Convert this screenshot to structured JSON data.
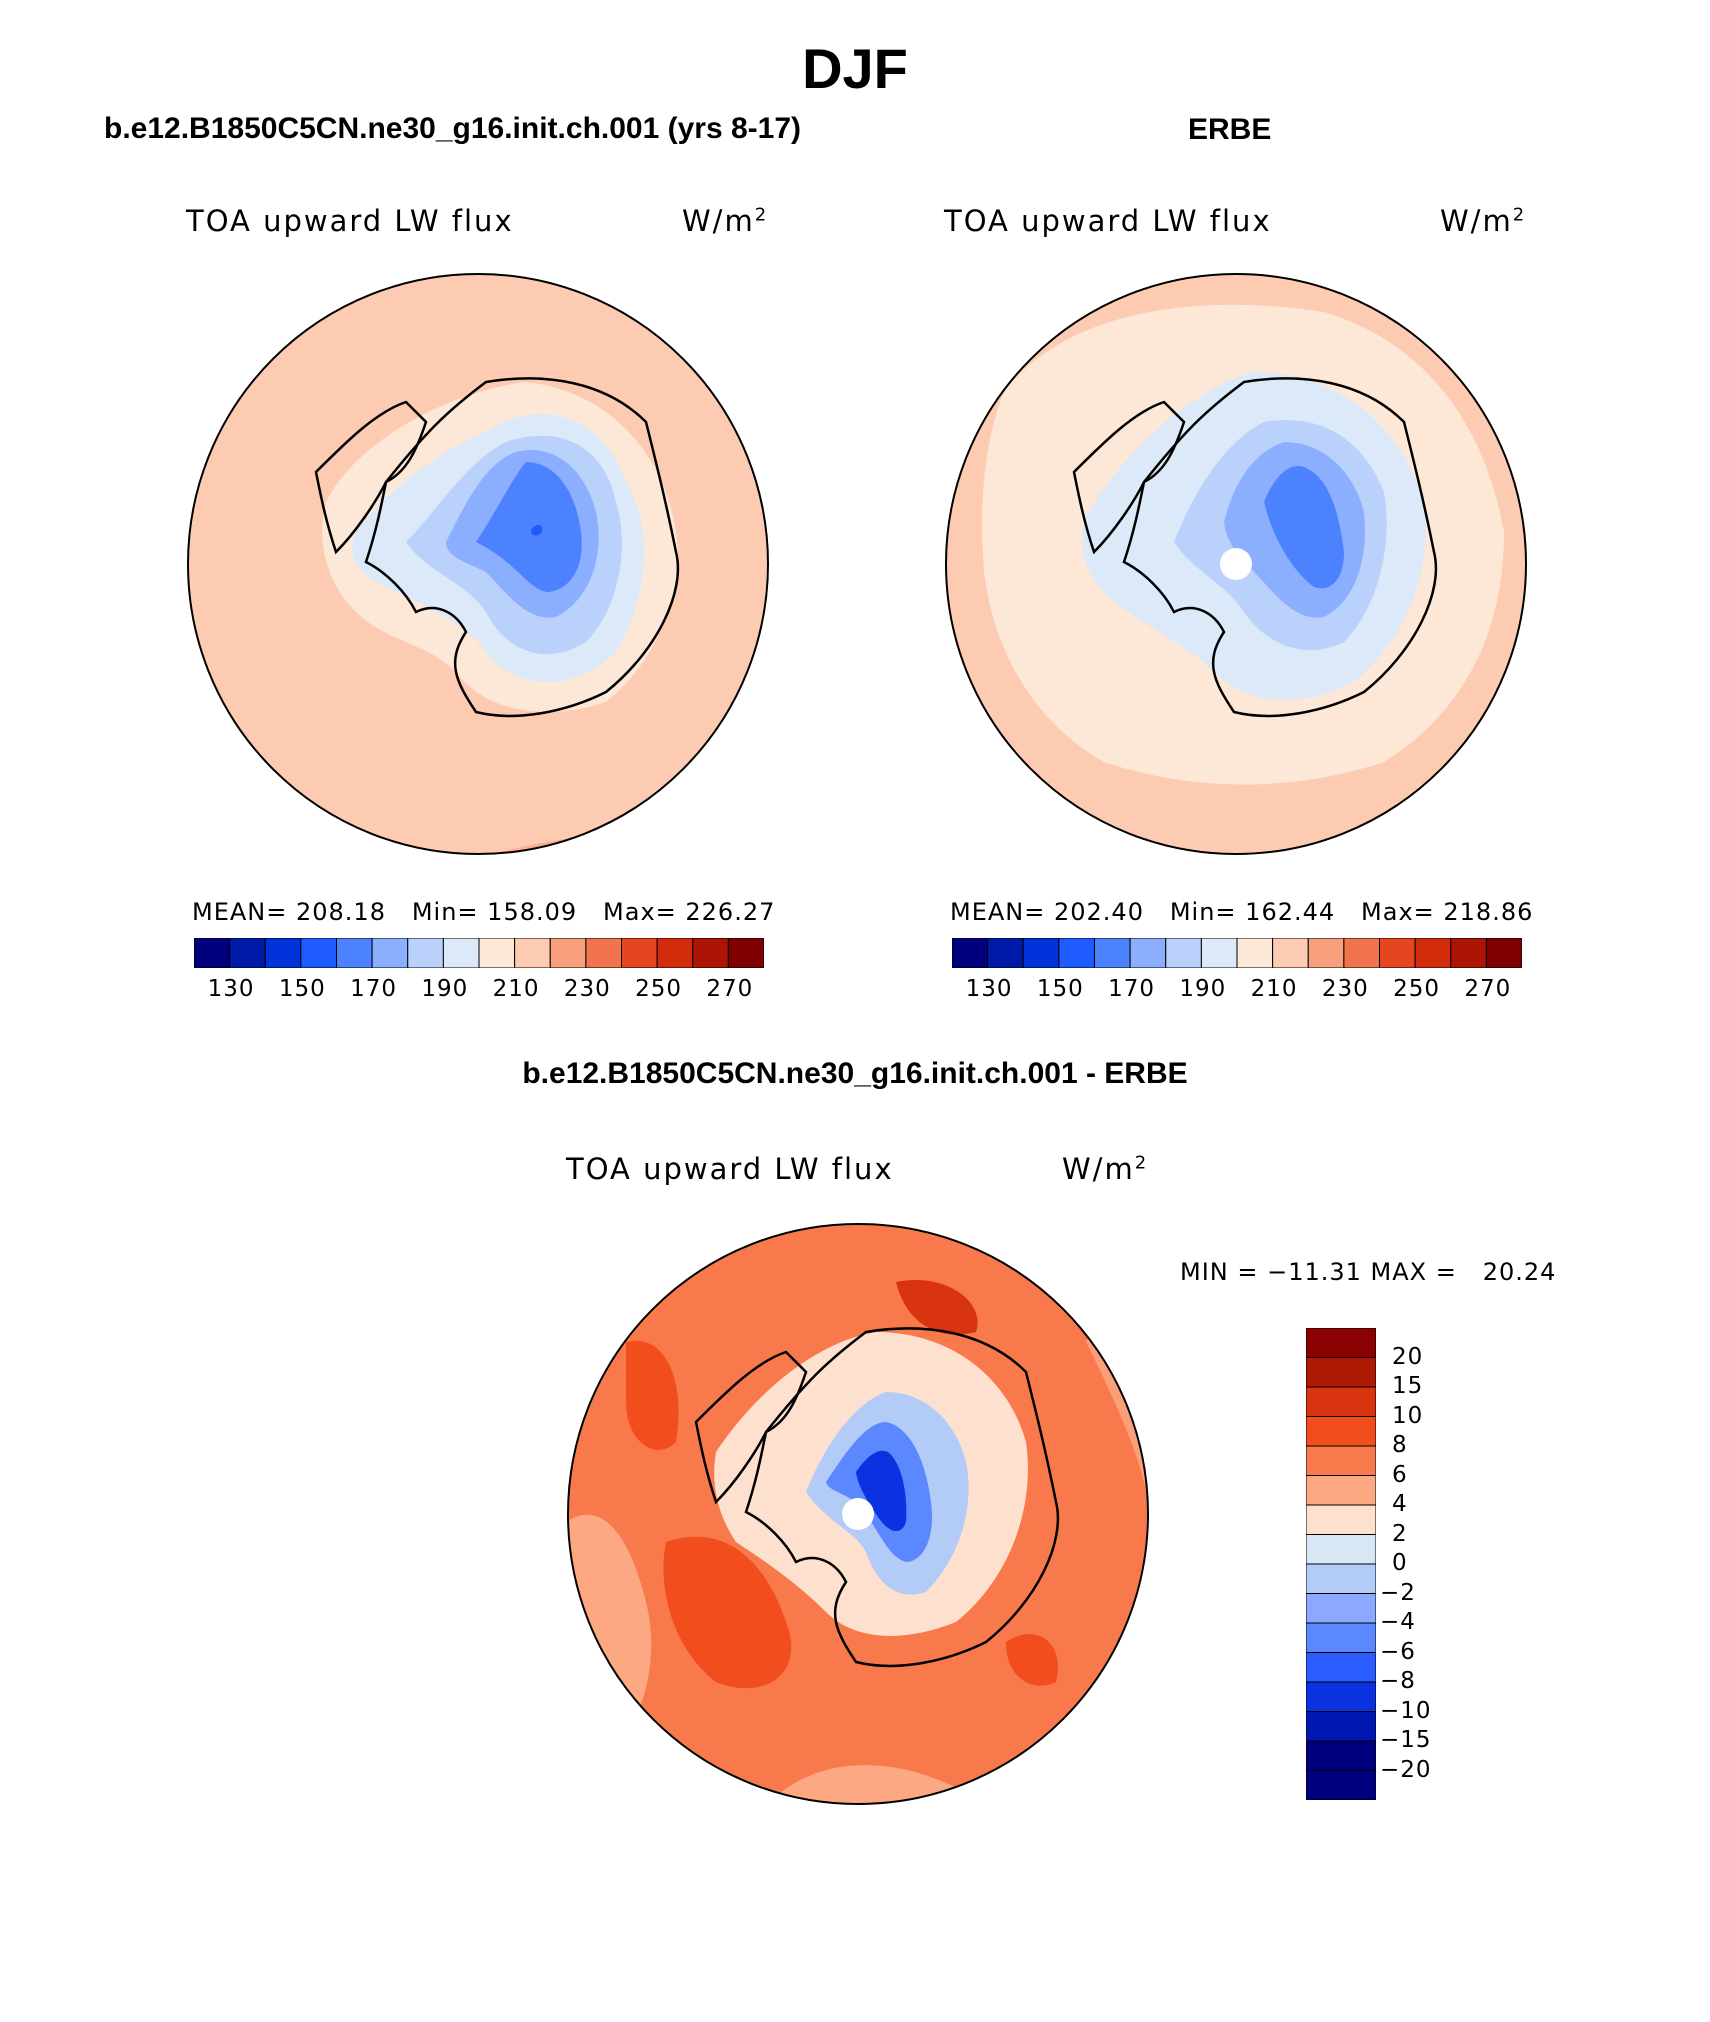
{
  "main_title": "DJF",
  "panels": {
    "left": {
      "case_title": "b.e12.B1850C5CN.ne30_g16.init.ch.001 (yrs 8-17)",
      "variable": "TOA upward LW flux",
      "units_base": "W/m",
      "units_exp": "2",
      "stats": "MEAN= 208.18   Min= 158.09   Max= 226.27"
    },
    "right": {
      "case_title": "ERBE",
      "variable": "TOA upward LW flux",
      "units_base": "W/m",
      "units_exp": "2",
      "stats": "MEAN= 202.40   Min= 162.44   Max= 218.86"
    },
    "diff": {
      "case_title": "b.e12.B1850C5CN.ne30_g16.init.ch.001 - ERBE",
      "variable": "TOA upward LW flux",
      "units_base": "W/m",
      "units_exp": "2",
      "stats": "MIN = −11.31 MAX =   20.24"
    }
  },
  "colorbar_abs": {
    "colors": [
      "#00007f",
      "#001aa8",
      "#0033d9",
      "#1f5bff",
      "#4d82ff",
      "#8caeff",
      "#b9d1fb",
      "#dce9f8",
      "#fde8d8",
      "#fccbb2",
      "#f8a07e",
      "#f1744e",
      "#e6461f",
      "#d22c0c",
      "#ad1405",
      "#7f0000"
    ],
    "tick_labels": [
      "130",
      "150",
      "170",
      "190",
      "210",
      "230",
      "250",
      "270"
    ]
  },
  "colorbar_diff": {
    "colors": [
      "#8b0000",
      "#b01a05",
      "#d93410",
      "#f14d1d",
      "#f87a4c",
      "#fca882",
      "#fee0cf",
      "#d8e7f6",
      "#b3ccf7",
      "#8aa9ff",
      "#5b87ff",
      "#2b5cff",
      "#0a32e0",
      "#0018b0",
      "#00007f"
    ],
    "tick_labels": [
      "20",
      "15",
      "10",
      "8",
      "6",
      "4",
      "2",
      "0",
      "−2",
      "−4",
      "−6",
      "−8",
      "−10",
      "−15",
      "−20"
    ]
  }
}
